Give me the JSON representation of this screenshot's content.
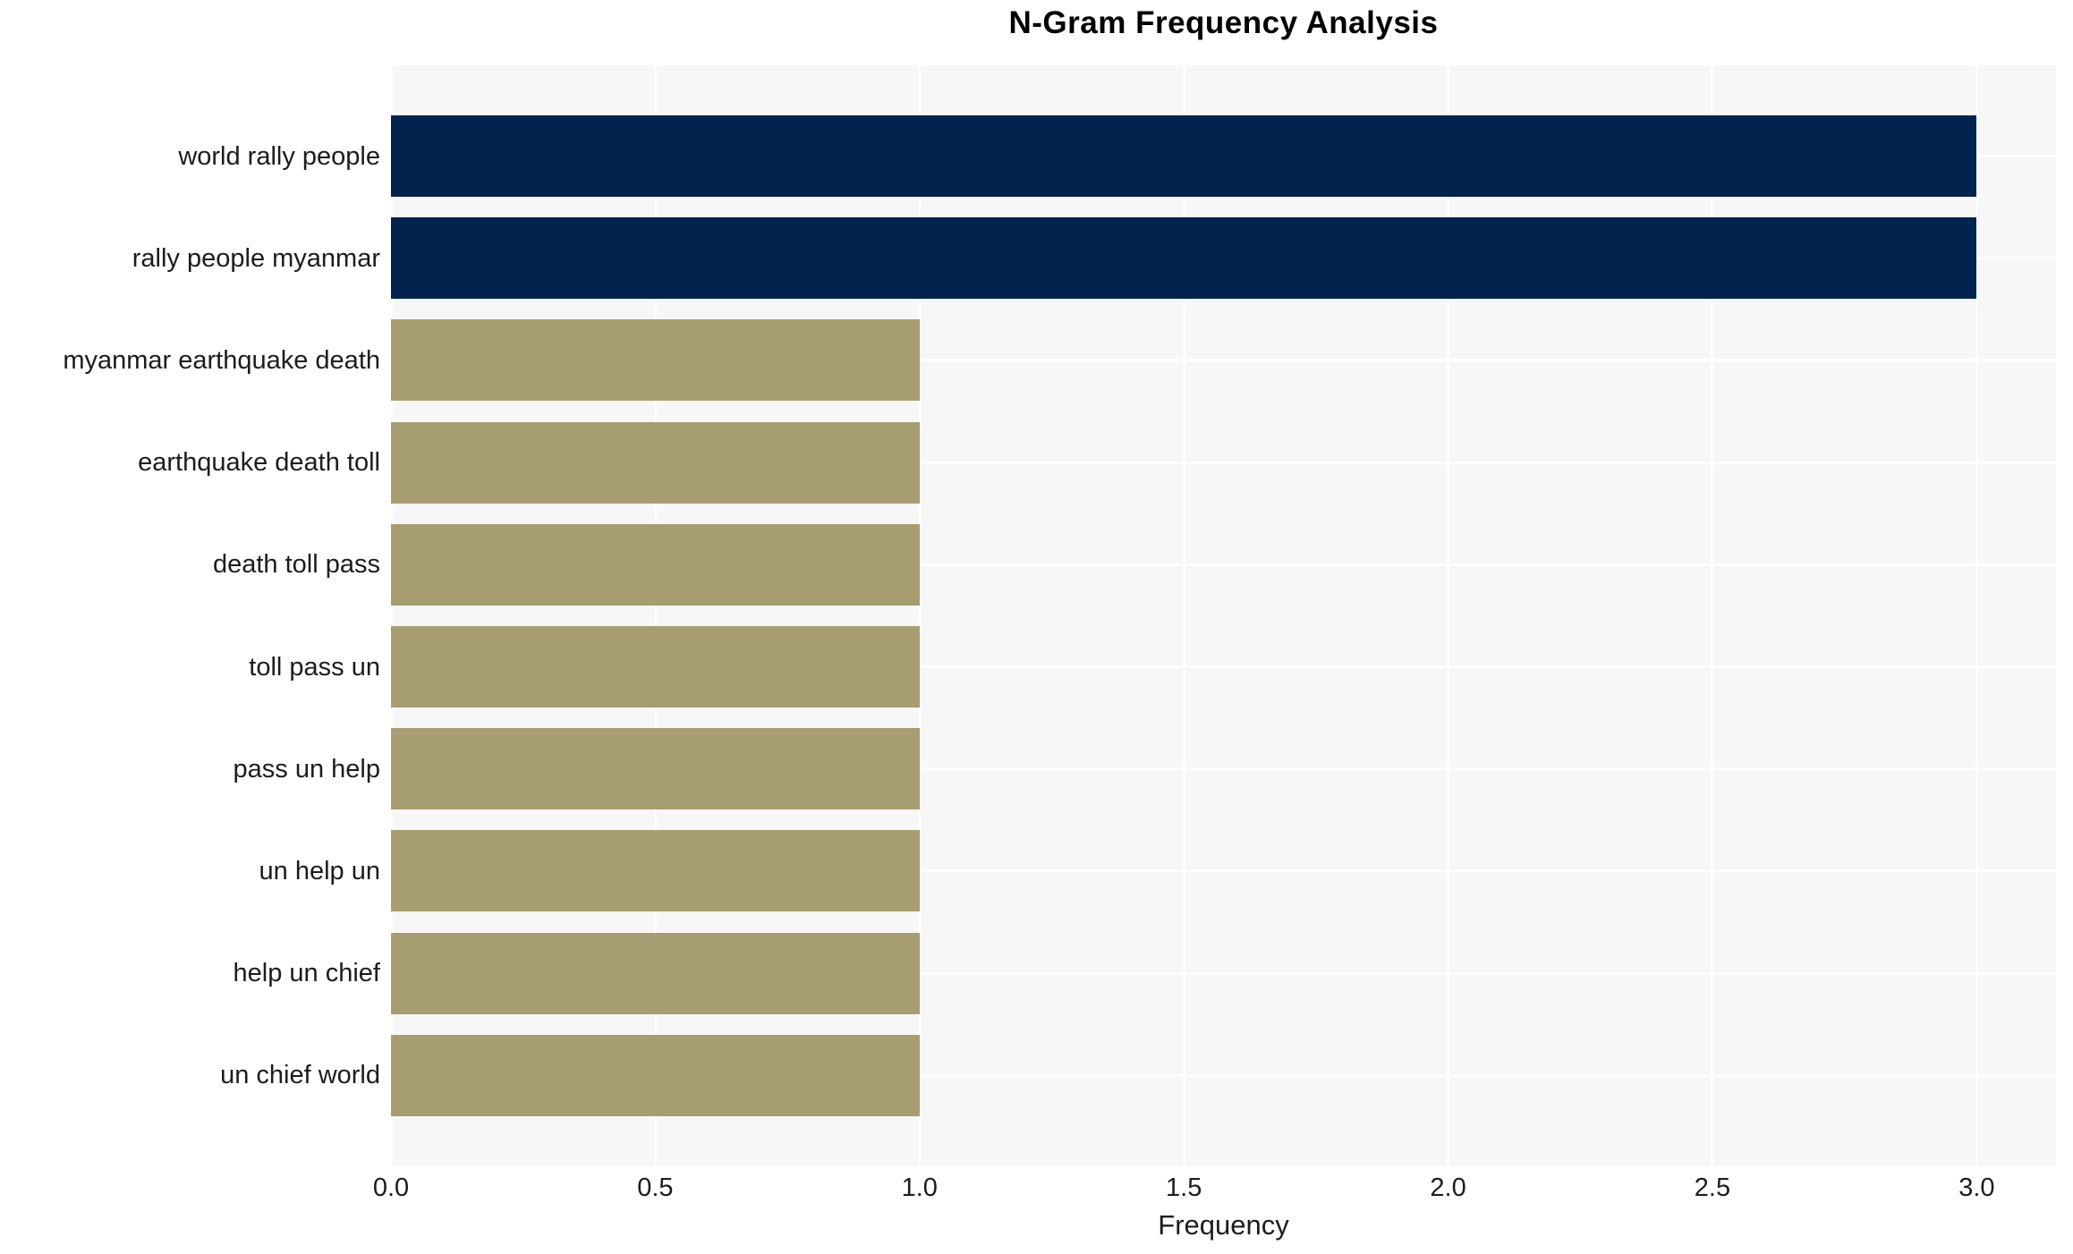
{
  "figure": {
    "background": "#ffffff"
  },
  "chart_data": {
    "type": "bar",
    "orientation": "horizontal",
    "title": "N-Gram Frequency Analysis",
    "xlabel": "Frequency",
    "ylabel": "",
    "categories": [
      "world rally people",
      "rally people myanmar",
      "myanmar earthquake death",
      "earthquake death toll",
      "death toll pass",
      "toll pass un",
      "pass un help",
      "un help un",
      "help un chief",
      "un chief world"
    ],
    "values": [
      3,
      3,
      1,
      1,
      1,
      1,
      1,
      1,
      1,
      1
    ],
    "bar_colors": [
      "#01234e",
      "#01234e",
      "#a69d71",
      "#a69d71",
      "#a69d71",
      "#a69d71",
      "#a69d71",
      "#a69d71",
      "#a69d71",
      "#a69d71"
    ],
    "xlim": [
      0,
      3.15
    ],
    "xticks": {
      "values": [
        0,
        0.5,
        1,
        1.5,
        2,
        2.5,
        3
      ],
      "labels": [
        "0.0",
        "0.5",
        "1.0",
        "1.5",
        "2.0",
        "2.5",
        "3.0"
      ]
    },
    "grid": {
      "show": true,
      "axis": "both",
      "color": "#ffffff"
    },
    "plot_background": "#f7f7f7",
    "text_color": "#1c1c1c",
    "title_color": "#000000"
  }
}
